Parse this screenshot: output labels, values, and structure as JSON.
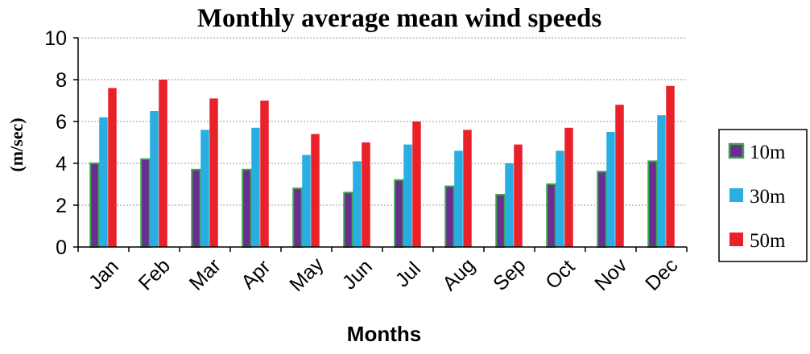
{
  "chart_data": {
    "type": "bar",
    "title": "Monthly average mean wind speeds",
    "xlabel": "Months",
    "ylabel": "(m/sec)",
    "ylim": [
      0,
      10
    ],
    "yticks": [
      0,
      2,
      4,
      6,
      8,
      10
    ],
    "grid": true,
    "legend_position": "right",
    "categories": [
      "Jan",
      "Feb",
      "Mar",
      "Apr",
      "May",
      "Jun",
      "Jul",
      "Aug",
      "Sep",
      "Oct",
      "Nov",
      "Dec"
    ],
    "series": [
      {
        "name": "10m",
        "color": "#6a2d91",
        "border_color": "#3aa84a",
        "values": [
          4.0,
          4.2,
          3.7,
          3.7,
          2.8,
          2.6,
          3.2,
          2.9,
          2.5,
          3.0,
          3.6,
          4.1
        ]
      },
      {
        "name": "30m",
        "color": "#29aee3",
        "values": [
          6.2,
          6.5,
          5.6,
          5.7,
          4.4,
          4.1,
          4.9,
          4.6,
          4.0,
          4.6,
          5.5,
          6.3
        ]
      },
      {
        "name": "50m",
        "color": "#e8212b",
        "values": [
          7.6,
          8.0,
          7.1,
          7.0,
          5.4,
          5.0,
          6.0,
          5.6,
          4.9,
          5.7,
          6.8,
          7.7
        ]
      }
    ]
  }
}
